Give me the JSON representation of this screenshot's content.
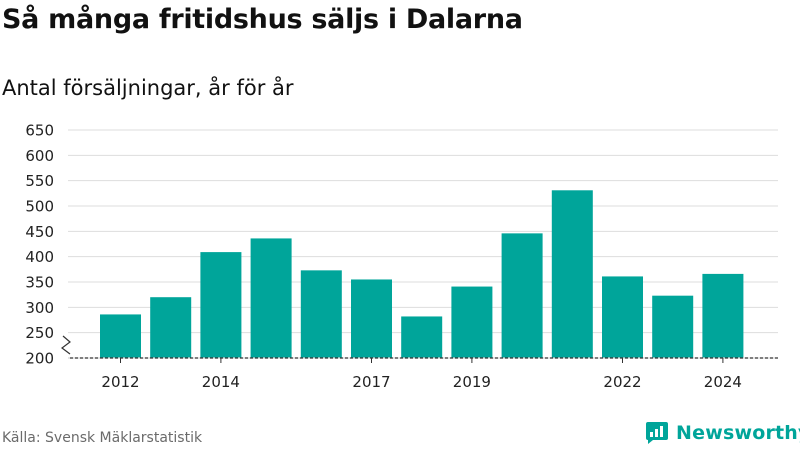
{
  "title": "Så många fritidshus säljs i Dalarna",
  "subtitle": "Antal försäljningar, år för år",
  "source": "Källa: Svensk Mäklarstatistik",
  "brand": {
    "name": "Newsworthy",
    "icon": "newsworthy-logo-icon",
    "color": "#00a59a"
  },
  "chart_data": {
    "type": "bar",
    "x": [
      2012,
      2013,
      2014,
      2015,
      2016,
      2017,
      2018,
      2019,
      2020,
      2021,
      2022,
      2023,
      2024
    ],
    "values": [
      286,
      320,
      409,
      436,
      373,
      355,
      282,
      341,
      446,
      531,
      361,
      323,
      366
    ],
    "xtick_labels": [
      "2012",
      "2014",
      "2017",
      "2019",
      "2022",
      "2024"
    ],
    "yticks": [
      200,
      250,
      300,
      350,
      400,
      450,
      500,
      550,
      600,
      650
    ],
    "ylim": [
      200,
      650
    ],
    "axis_break": true,
    "bar_color": "#00a59a",
    "grid": true,
    "xlabel": "",
    "ylabel": ""
  }
}
